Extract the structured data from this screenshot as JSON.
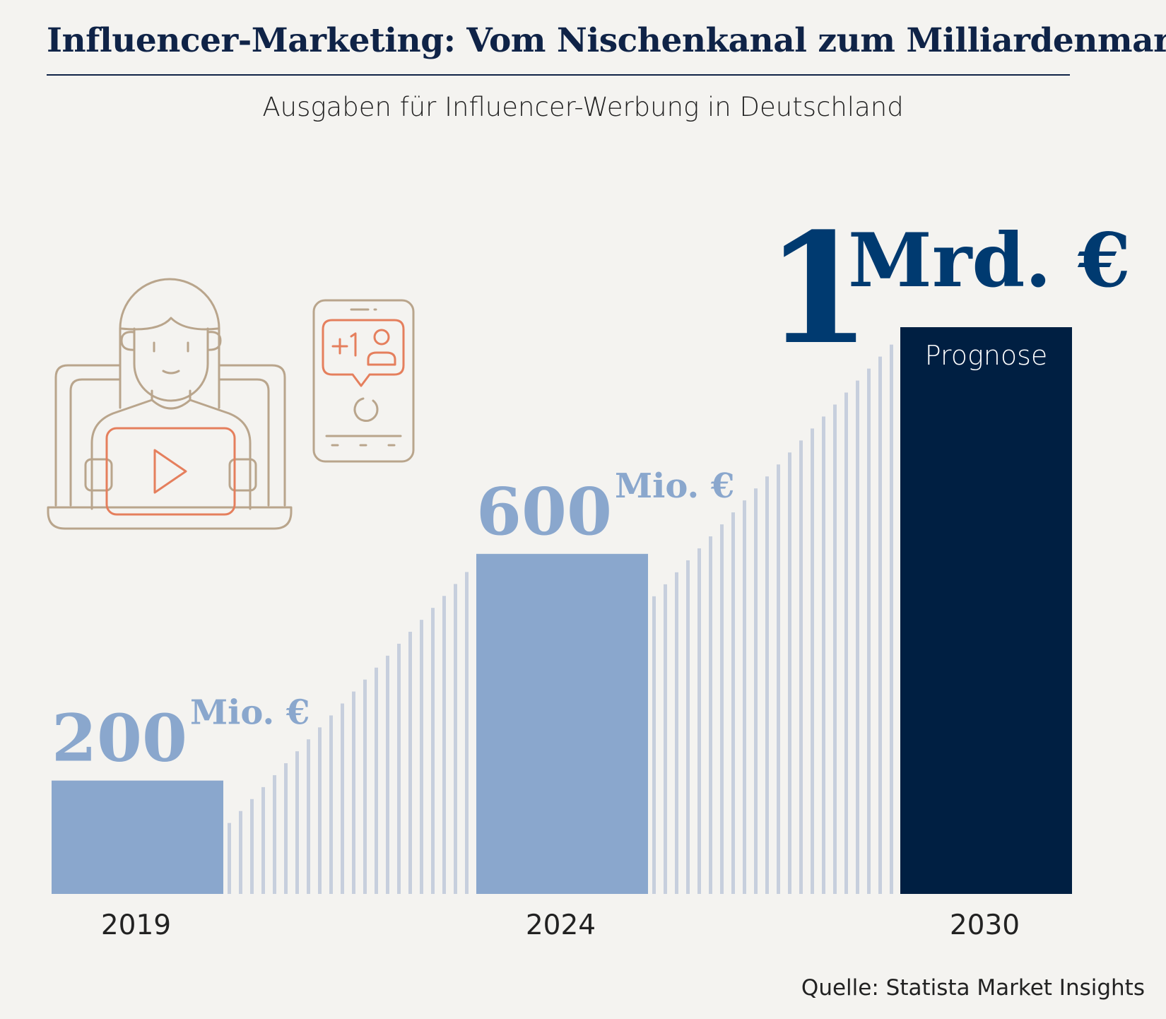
{
  "title": "Influencer-Marketing: Vom Nischenkanal zum Milliardenmarkt",
  "subtitle": "Ausgaben für Influencer-Werbung in Deutschland",
  "source": "Quelle: Statista Market Insights",
  "colors": {
    "background": "#f4f3f0",
    "bar_light": "#8aa7cd",
    "bar_dark": "#001f42",
    "hatch": "#c7cfdd",
    "value_light": "#8aa7cd",
    "value_dark": "#003a70",
    "icon_line": "#b9a58c",
    "icon_accent": "#e57f5d"
  },
  "icons": [
    "influencer-laptop-icon",
    "smartphone-follower-icon"
  ],
  "chart_data": {
    "type": "bar",
    "title": "Ausgaben für Influencer-Werbung in Deutschland",
    "xlabel": "",
    "ylabel": "",
    "unit_base": "Mio. €",
    "ylim": [
      0,
      1000
    ],
    "categories": [
      "2019",
      "2024",
      "2030"
    ],
    "values": [
      200,
      600,
      1000
    ],
    "value_labels": [
      {
        "number": "200",
        "unit": "Mio. €"
      },
      {
        "number": "600",
        "unit": "Mio. €"
      },
      {
        "number": "1",
        "unit": "Mrd. €"
      }
    ],
    "annotations": [
      "",
      "",
      "Prognose"
    ],
    "forecast": [
      false,
      false,
      true
    ]
  }
}
